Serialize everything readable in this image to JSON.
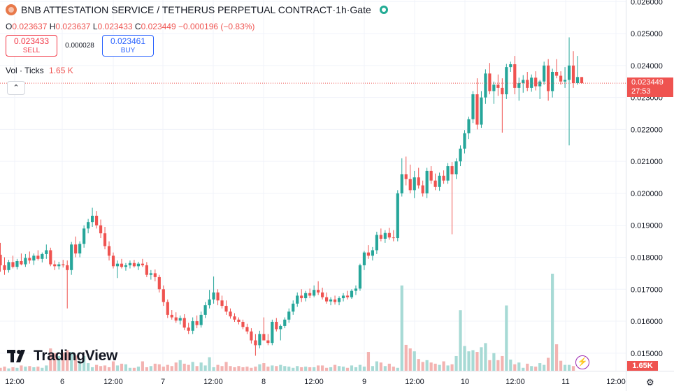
{
  "header": {
    "symbol": "BNB ATTESTATION SERVICE / TETHERUS PERPETUAL CONTRACT",
    "interval": "1h",
    "exchange": "Gate",
    "separator1": " / ",
    "dot": " · ",
    "coin_icon": "coin-logo-icon",
    "live_icon": "market-open-dot-icon"
  },
  "ohlc": {
    "o_label": "O",
    "o": "0.023637",
    "h_label": "H",
    "h": "0.023637",
    "l_label": "L",
    "l": "0.023433",
    "c_label": "C",
    "c": "0.023449",
    "change": "−0.000196 (−0.83%)"
  },
  "trade": {
    "sell_price": "0.023433",
    "sell_label": "SELL",
    "spread": "0.000028",
    "buy_price": "0.023461",
    "buy_label": "BUY"
  },
  "volume_legend": {
    "label": "Vol · Ticks",
    "value": "1.65 K"
  },
  "collapse_icon": "chevron-up-icon",
  "collapse_glyph": "⌃",
  "last_price": {
    "price": "0.023449",
    "countdown": "27:53"
  },
  "volume_tag": "1.65K",
  "watermark": {
    "text": "TradingView",
    "logo_icon": "tradingview-logo-icon"
  },
  "bolt_icon": "lightning-icon",
  "bolt_glyph": "⚡",
  "settings_icon": "gear-icon",
  "settings_glyph": "⚙",
  "colors": {
    "up": "#26a69a",
    "down": "#ef5350",
    "up_vol": "#a7dad5",
    "down_vol": "#f3b3b1",
    "coin": "#e8794a",
    "live": "#22ab94",
    "sell": "#f23645",
    "buy": "#2962ff",
    "grid": "#f0f3fa",
    "text": "#131722",
    "muted": "#6a6d78",
    "watermark": "#131722"
  },
  "chart_data": {
    "type": "candlestick",
    "y_axis": {
      "ticks": [
        "0.015000",
        "0.016000",
        "0.017000",
        "0.018000",
        "0.019000",
        "0.020000",
        "0.021000",
        "0.022000",
        "0.023000",
        "0.024000",
        "0.025000",
        "0.026000"
      ],
      "range": [
        0.01445,
        0.02605
      ]
    },
    "x_axis": {
      "ticks": [
        "12:00",
        "6",
        "12:00",
        "7",
        "12:00",
        "8",
        "12:00",
        "9",
        "12:00",
        "10",
        "12:00",
        "11",
        "12:00"
      ]
    },
    "volume_scale_max": 1.65,
    "volume_unit": "K",
    "series": [
      {
        "o": 0.01808,
        "h": 0.01845,
        "l": 0.01755,
        "c": 0.01775
      },
      {
        "o": 0.01775,
        "h": 0.018,
        "l": 0.01745,
        "c": 0.0176
      },
      {
        "o": 0.0176,
        "h": 0.01792,
        "l": 0.01752,
        "c": 0.01785
      },
      {
        "o": 0.01785,
        "h": 0.01805,
        "l": 0.01765,
        "c": 0.0177
      },
      {
        "o": 0.0177,
        "h": 0.01795,
        "l": 0.01762,
        "c": 0.01788
      },
      {
        "o": 0.01788,
        "h": 0.01812,
        "l": 0.01775,
        "c": 0.01778
      },
      {
        "o": 0.01778,
        "h": 0.0181,
        "l": 0.0177,
        "c": 0.01798
      },
      {
        "o": 0.01798,
        "h": 0.01818,
        "l": 0.0178,
        "c": 0.0179
      },
      {
        "o": 0.0179,
        "h": 0.01812,
        "l": 0.01776,
        "c": 0.01805
      },
      {
        "o": 0.01805,
        "h": 0.01822,
        "l": 0.0179,
        "c": 0.01795
      },
      {
        "o": 0.01795,
        "h": 0.01815,
        "l": 0.01784,
        "c": 0.0181
      },
      {
        "o": 0.0181,
        "h": 0.0184,
        "l": 0.01795,
        "c": 0.01822
      },
      {
        "o": 0.01822,
        "h": 0.0183,
        "l": 0.01772,
        "c": 0.01778
      },
      {
        "o": 0.01778,
        "h": 0.0179,
        "l": 0.0176,
        "c": 0.01772
      },
      {
        "o": 0.01772,
        "h": 0.01786,
        "l": 0.01762,
        "c": 0.01778
      },
      {
        "o": 0.01778,
        "h": 0.01792,
        "l": 0.01768,
        "c": 0.01775
      },
      {
        "o": 0.01775,
        "h": 0.0179,
        "l": 0.0164,
        "c": 0.0176
      },
      {
        "o": 0.0176,
        "h": 0.01848,
        "l": 0.01745,
        "c": 0.0184
      },
      {
        "o": 0.0184,
        "h": 0.01865,
        "l": 0.018,
        "c": 0.01812
      },
      {
        "o": 0.01812,
        "h": 0.0185,
        "l": 0.018,
        "c": 0.01842
      },
      {
        "o": 0.01842,
        "h": 0.019,
        "l": 0.0183,
        "c": 0.0189
      },
      {
        "o": 0.0189,
        "h": 0.0192,
        "l": 0.01875,
        "c": 0.0191
      },
      {
        "o": 0.0191,
        "h": 0.01955,
        "l": 0.01895,
        "c": 0.0193
      },
      {
        "o": 0.0193,
        "h": 0.01945,
        "l": 0.0189,
        "c": 0.019
      },
      {
        "o": 0.019,
        "h": 0.01918,
        "l": 0.0186,
        "c": 0.01875
      },
      {
        "o": 0.01875,
        "h": 0.01895,
        "l": 0.01825,
        "c": 0.01835
      },
      {
        "o": 0.01835,
        "h": 0.0185,
        "l": 0.0179,
        "c": 0.01805
      },
      {
        "o": 0.01805,
        "h": 0.01815,
        "l": 0.01765,
        "c": 0.01772
      },
      {
        "o": 0.01772,
        "h": 0.0179,
        "l": 0.01735,
        "c": 0.0178
      },
      {
        "o": 0.0178,
        "h": 0.01795,
        "l": 0.01765,
        "c": 0.0177
      },
      {
        "o": 0.0177,
        "h": 0.01782,
        "l": 0.01758,
        "c": 0.01775
      },
      {
        "o": 0.01775,
        "h": 0.0179,
        "l": 0.01765,
        "c": 0.01782
      },
      {
        "o": 0.01782,
        "h": 0.01792,
        "l": 0.01768,
        "c": 0.01772
      },
      {
        "o": 0.01772,
        "h": 0.01786,
        "l": 0.0176,
        "c": 0.0178
      },
      {
        "o": 0.0178,
        "h": 0.01795,
        "l": 0.0177,
        "c": 0.01775
      },
      {
        "o": 0.01775,
        "h": 0.01785,
        "l": 0.01738,
        "c": 0.01745
      },
      {
        "o": 0.01745,
        "h": 0.0176,
        "l": 0.0173,
        "c": 0.0175
      },
      {
        "o": 0.0175,
        "h": 0.01762,
        "l": 0.01725,
        "c": 0.01738
      },
      {
        "o": 0.01738,
        "h": 0.01745,
        "l": 0.0169,
        "c": 0.017
      },
      {
        "o": 0.017,
        "h": 0.01712,
        "l": 0.01648,
        "c": 0.0166
      },
      {
        "o": 0.0166,
        "h": 0.01668,
        "l": 0.0161,
        "c": 0.0162
      },
      {
        "o": 0.0162,
        "h": 0.01635,
        "l": 0.01605,
        "c": 0.01612
      },
      {
        "o": 0.01612,
        "h": 0.01628,
        "l": 0.01595,
        "c": 0.01602
      },
      {
        "o": 0.01602,
        "h": 0.01618,
        "l": 0.0159,
        "c": 0.0161
      },
      {
        "o": 0.0161,
        "h": 0.01622,
        "l": 0.01572,
        "c": 0.0158
      },
      {
        "o": 0.0158,
        "h": 0.01595,
        "l": 0.0156,
        "c": 0.0157
      },
      {
        "o": 0.0157,
        "h": 0.01612,
        "l": 0.0156,
        "c": 0.016
      },
      {
        "o": 0.016,
        "h": 0.01618,
        "l": 0.01578,
        "c": 0.01588
      },
      {
        "o": 0.01588,
        "h": 0.0163,
        "l": 0.0158,
        "c": 0.0162
      },
      {
        "o": 0.0162,
        "h": 0.0166,
        "l": 0.0161,
        "c": 0.0165
      },
      {
        "o": 0.0165,
        "h": 0.01698,
        "l": 0.0164,
        "c": 0.01668
      },
      {
        "o": 0.01668,
        "h": 0.0174,
        "l": 0.01655,
        "c": 0.0169
      },
      {
        "o": 0.0169,
        "h": 0.017,
        "l": 0.0165,
        "c": 0.01665
      },
      {
        "o": 0.01665,
        "h": 0.0168,
        "l": 0.0164,
        "c": 0.01648
      },
      {
        "o": 0.01648,
        "h": 0.01665,
        "l": 0.0162,
        "c": 0.0163
      },
      {
        "o": 0.0163,
        "h": 0.0164,
        "l": 0.01608,
        "c": 0.01615
      },
      {
        "o": 0.01615,
        "h": 0.01625,
        "l": 0.01598,
        "c": 0.01605
      },
      {
        "o": 0.01605,
        "h": 0.01612,
        "l": 0.0159,
        "c": 0.01598
      },
      {
        "o": 0.01598,
        "h": 0.01605,
        "l": 0.01575,
        "c": 0.01582
      },
      {
        "o": 0.01582,
        "h": 0.01592,
        "l": 0.0156,
        "c": 0.01568
      },
      {
        "o": 0.01568,
        "h": 0.01578,
        "l": 0.0153,
        "c": 0.0154
      },
      {
        "o": 0.0154,
        "h": 0.0156,
        "l": 0.01492,
        "c": 0.01525
      },
      {
        "o": 0.01525,
        "h": 0.0157,
        "l": 0.01515,
        "c": 0.0156
      },
      {
        "o": 0.0156,
        "h": 0.01612,
        "l": 0.01545,
        "c": 0.0154
      },
      {
        "o": 0.0154,
        "h": 0.0156,
        "l": 0.01525,
        "c": 0.01532
      },
      {
        "o": 0.01532,
        "h": 0.01605,
        "l": 0.01525,
        "c": 0.01598
      },
      {
        "o": 0.01598,
        "h": 0.0161,
        "l": 0.01568,
        "c": 0.01575
      },
      {
        "o": 0.01575,
        "h": 0.0159,
        "l": 0.0154,
        "c": 0.01585
      },
      {
        "o": 0.01585,
        "h": 0.01612,
        "l": 0.01578,
        "c": 0.01605
      },
      {
        "o": 0.01605,
        "h": 0.0164,
        "l": 0.01595,
        "c": 0.0163
      },
      {
        "o": 0.0163,
        "h": 0.01665,
        "l": 0.0162,
        "c": 0.01655
      },
      {
        "o": 0.01655,
        "h": 0.0169,
        "l": 0.01645,
        "c": 0.0168
      },
      {
        "o": 0.0168,
        "h": 0.017,
        "l": 0.0166,
        "c": 0.01672
      },
      {
        "o": 0.01672,
        "h": 0.01695,
        "l": 0.01662,
        "c": 0.01688
      },
      {
        "o": 0.01688,
        "h": 0.01702,
        "l": 0.01672,
        "c": 0.0168
      },
      {
        "o": 0.0168,
        "h": 0.01712,
        "l": 0.01675,
        "c": 0.01698
      },
      {
        "o": 0.01698,
        "h": 0.01725,
        "l": 0.01682,
        "c": 0.0169
      },
      {
        "o": 0.0169,
        "h": 0.01705,
        "l": 0.01668,
        "c": 0.01675
      },
      {
        "o": 0.01675,
        "h": 0.0169,
        "l": 0.01655,
        "c": 0.01662
      },
      {
        "o": 0.01662,
        "h": 0.01675,
        "l": 0.0165,
        "c": 0.01668
      },
      {
        "o": 0.01668,
        "h": 0.0168,
        "l": 0.01652,
        "c": 0.0166
      },
      {
        "o": 0.0166,
        "h": 0.01678,
        "l": 0.0165,
        "c": 0.01672
      },
      {
        "o": 0.01672,
        "h": 0.01688,
        "l": 0.01662,
        "c": 0.0168
      },
      {
        "o": 0.0168,
        "h": 0.01695,
        "l": 0.01668,
        "c": 0.01675
      },
      {
        "o": 0.01675,
        "h": 0.017,
        "l": 0.0167,
        "c": 0.01695
      },
      {
        "o": 0.01695,
        "h": 0.01712,
        "l": 0.01682,
        "c": 0.01702
      },
      {
        "o": 0.01702,
        "h": 0.0178,
        "l": 0.01695,
        "c": 0.01775
      },
      {
        "o": 0.01775,
        "h": 0.0182,
        "l": 0.0176,
        "c": 0.01815
      },
      {
        "o": 0.01815,
        "h": 0.01838,
        "l": 0.01795,
        "c": 0.01805
      },
      {
        "o": 0.01805,
        "h": 0.01832,
        "l": 0.0179,
        "c": 0.01822
      },
      {
        "o": 0.01822,
        "h": 0.0188,
        "l": 0.0181,
        "c": 0.0187
      },
      {
        "o": 0.0187,
        "h": 0.0189,
        "l": 0.0185,
        "c": 0.01858
      },
      {
        "o": 0.01858,
        "h": 0.01885,
        "l": 0.01845,
        "c": 0.01876
      },
      {
        "o": 0.01876,
        "h": 0.01892,
        "l": 0.01855,
        "c": 0.01862
      },
      {
        "o": 0.01862,
        "h": 0.01885,
        "l": 0.0185,
        "c": 0.0186
      },
      {
        "o": 0.0186,
        "h": 0.0201,
        "l": 0.0185,
        "c": 0.02
      },
      {
        "o": 0.02,
        "h": 0.0211,
        "l": 0.0199,
        "c": 0.0206
      },
      {
        "o": 0.0206,
        "h": 0.02115,
        "l": 0.02025,
        "c": 0.02045
      },
      {
        "o": 0.02045,
        "h": 0.0209,
        "l": 0.02,
        "c": 0.0201
      },
      {
        "o": 0.0201,
        "h": 0.0207,
        "l": 0.01985,
        "c": 0.0205
      },
      {
        "o": 0.0205,
        "h": 0.0208,
        "l": 0.02015,
        "c": 0.02025
      },
      {
        "o": 0.02025,
        "h": 0.0204,
        "l": 0.0199,
        "c": 0.02
      },
      {
        "o": 0.02,
        "h": 0.0208,
        "l": 0.01985,
        "c": 0.0207
      },
      {
        "o": 0.0207,
        "h": 0.02085,
        "l": 0.0203,
        "c": 0.0204
      },
      {
        "o": 0.0204,
        "h": 0.02062,
        "l": 0.0201,
        "c": 0.0202
      },
      {
        "o": 0.0202,
        "h": 0.02065,
        "l": 0.02008,
        "c": 0.02055
      },
      {
        "o": 0.02055,
        "h": 0.02072,
        "l": 0.0203,
        "c": 0.0204
      },
      {
        "o": 0.0204,
        "h": 0.02095,
        "l": 0.0203,
        "c": 0.02085
      },
      {
        "o": 0.02085,
        "h": 0.02098,
        "l": 0.01872,
        "c": 0.0206
      },
      {
        "o": 0.0206,
        "h": 0.0211,
        "l": 0.02045,
        "c": 0.021
      },
      {
        "o": 0.021,
        "h": 0.0215,
        "l": 0.02085,
        "c": 0.0214
      },
      {
        "o": 0.0214,
        "h": 0.02198,
        "l": 0.02125,
        "c": 0.02188
      },
      {
        "o": 0.02188,
        "h": 0.0224,
        "l": 0.0217,
        "c": 0.02232
      },
      {
        "o": 0.02232,
        "h": 0.0232,
        "l": 0.0222,
        "c": 0.0231
      },
      {
        "o": 0.0231,
        "h": 0.0236,
        "l": 0.022,
        "c": 0.02215
      },
      {
        "o": 0.02215,
        "h": 0.0232,
        "l": 0.02205,
        "c": 0.023
      },
      {
        "o": 0.023,
        "h": 0.02388,
        "l": 0.0228,
        "c": 0.02375
      },
      {
        "o": 0.02375,
        "h": 0.02408,
        "l": 0.0231,
        "c": 0.0232
      },
      {
        "o": 0.0232,
        "h": 0.0235,
        "l": 0.0228,
        "c": 0.0234
      },
      {
        "o": 0.0234,
        "h": 0.02372,
        "l": 0.02305,
        "c": 0.0233
      },
      {
        "o": 0.0233,
        "h": 0.0236,
        "l": 0.0219,
        "c": 0.0231
      },
      {
        "o": 0.0231,
        "h": 0.02405,
        "l": 0.02295,
        "c": 0.02395
      },
      {
        "o": 0.02395,
        "h": 0.02412,
        "l": 0.0238,
        "c": 0.02404
      },
      {
        "o": 0.02404,
        "h": 0.0243,
        "l": 0.0231,
        "c": 0.0233
      },
      {
        "o": 0.0233,
        "h": 0.02362,
        "l": 0.0229,
        "c": 0.02345
      },
      {
        "o": 0.02345,
        "h": 0.0237,
        "l": 0.02315,
        "c": 0.02355
      },
      {
        "o": 0.02355,
        "h": 0.0238,
        "l": 0.0232,
        "c": 0.0233
      },
      {
        "o": 0.0233,
        "h": 0.02372,
        "l": 0.02318,
        "c": 0.02362
      },
      {
        "o": 0.02362,
        "h": 0.02382,
        "l": 0.02322,
        "c": 0.02335
      },
      {
        "o": 0.02335,
        "h": 0.02355,
        "l": 0.02295,
        "c": 0.0235
      },
      {
        "o": 0.0235,
        "h": 0.02412,
        "l": 0.0234,
        "c": 0.024
      },
      {
        "o": 0.024,
        "h": 0.0242,
        "l": 0.0229,
        "c": 0.0232
      },
      {
        "o": 0.0232,
        "h": 0.0239,
        "l": 0.023,
        "c": 0.0238
      },
      {
        "o": 0.0238,
        "h": 0.0242,
        "l": 0.0236,
        "c": 0.02368
      },
      {
        "o": 0.02368,
        "h": 0.02382,
        "l": 0.0234,
        "c": 0.0235
      },
      {
        "o": 0.0235,
        "h": 0.02395,
        "l": 0.0233,
        "c": 0.02355
      },
      {
        "o": 0.02355,
        "h": 0.02488,
        "l": 0.0215,
        "c": 0.024
      },
      {
        "o": 0.024,
        "h": 0.02445,
        "l": 0.0233,
        "c": 0.02345
      },
      {
        "o": 0.02345,
        "h": 0.0243,
        "l": 0.0234,
        "c": 0.02364
      },
      {
        "o": 0.02364,
        "h": 0.02364,
        "l": 0.02343,
        "c": 0.02345
      }
    ],
    "volume": [
      0.05,
      0.07,
      0.04,
      0.06,
      0.05,
      0.09,
      0.07,
      0.08,
      0.06,
      0.07,
      0.05,
      0.09,
      0.38,
      0.3,
      0.25,
      0.31,
      0.35,
      0.32,
      0.26,
      0.17,
      0.25,
      0.13,
      0.06,
      0.1,
      0.08,
      0.09,
      0.06,
      0.16,
      0.09,
      0.12,
      0.11,
      0.05,
      0.05,
      0.07,
      0.16,
      0.06,
      0.08,
      0.12,
      0.11,
      0.07,
      0.1,
      0.08,
      0.14,
      0.18,
      0.12,
      0.1,
      0.15,
      0.08,
      0.14,
      0.09,
      0.23,
      0.06,
      0.1,
      0.08,
      0.15,
      0.08,
      0.06,
      0.08,
      0.06,
      0.07,
      0.05,
      0.07,
      0.11,
      0.13,
      0.07,
      0.09,
      0.08,
      0.1,
      0.08,
      0.07,
      0.05,
      0.08,
      0.06,
      0.07,
      0.06,
      0.06,
      0.09,
      0.09,
      0.05,
      0.06,
      0.1,
      0.08,
      0.07,
      0.05,
      0.09,
      0.06,
      0.1,
      0.07,
      0.32,
      0.08,
      0.16,
      0.14,
      0.08,
      0.12,
      0.07,
      0.05,
      1.45,
      0.44,
      0.38,
      0.33,
      0.2,
      0.15,
      0.18,
      0.14,
      0.12,
      0.1,
      0.16,
      0.09,
      0.11,
      0.25,
      1.03,
      0.42,
      0.33,
      0.35,
      0.32,
      0.4,
      0.47,
      0.18,
      0.3,
      0.18,
      0.25,
      1.11,
      0.19,
      0.11,
      0.14,
      0.05,
      0.12,
      0.08,
      0.07,
      0.13,
      0.1,
      0.22,
      1.65,
      0.45,
      0.17,
      0.1,
      0.1,
      0.08
    ]
  }
}
